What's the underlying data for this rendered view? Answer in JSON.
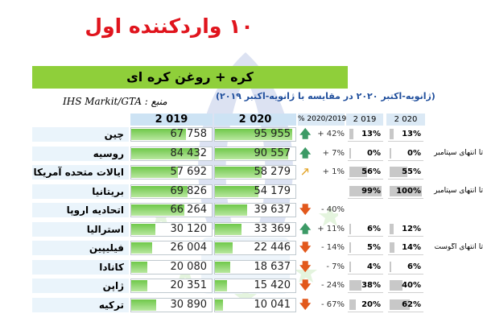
{
  "title": "۱۰ واردکننده اول",
  "banner": "کره + روغن کره ای",
  "subtitle": "(ژانویه-اکتبر ۲۰۲۰ در مقایسه با ژانویه-اکتبر ۲۰۱۹)",
  "source": "IHS Markit/GTA : منبع",
  "colors": {
    "title": "#e0141d",
    "banner": "#8fcf3a",
    "bar": "#6fc84a",
    "up": "#3c9a66",
    "down": "#e2581c",
    "neutral": "#e3a52a"
  },
  "chart_data": {
    "type": "table",
    "columns": {
      "col_2019": "2 019",
      "col_2020": "2 020",
      "change": "% 2020/2019",
      "share_2019": "2 019",
      "share_2020": "2 020"
    },
    "rows": [
      {
        "country": "چین",
        "v2019": "67 758",
        "v2020": "95 955",
        "change": "+ 42%",
        "trend": "up",
        "s2019": "13%",
        "s2020": "13%"
      },
      {
        "country": "روسیه",
        "v2019": "84 432",
        "v2020": "90 557",
        "change": "+ 7%",
        "trend": "up",
        "s2019": "0%",
        "s2020": "0%"
      },
      {
        "country": "ایالات متحده آمریکا",
        "v2019": "57 692",
        "v2020": "58 279",
        "change": "+ 1%",
        "trend": "flat",
        "s2019": "56%",
        "s2020": "55%"
      },
      {
        "country": "بریتانیا",
        "v2019": "69 826",
        "v2020": "54 179",
        "change": "",
        "trend": "none",
        "s2019": "99%",
        "s2020": "100%"
      },
      {
        "country": "اتحادیه اروپا",
        "v2019": "66 264",
        "v2020": "39 637",
        "change": "- 40%",
        "trend": "down",
        "s2019": "",
        "s2020": ""
      },
      {
        "country": "استرالیا",
        "v2019": "30 120",
        "v2020": "33 369",
        "change": "+ 11%",
        "trend": "up",
        "s2019": "6%",
        "s2020": "12%"
      },
      {
        "country": "فیلیپین",
        "v2019": "26 004",
        "v2020": "22 446",
        "change": "- 14%",
        "trend": "down",
        "s2019": "5%",
        "s2020": "14%"
      },
      {
        "country": "کانادا",
        "v2019": "20 080",
        "v2020": "18 637",
        "change": "- 7%",
        "trend": "down",
        "s2019": "4%",
        "s2020": "6%"
      },
      {
        "country": "ژاپن",
        "v2019": "20 351",
        "v2020": "15 420",
        "change": "- 24%",
        "trend": "down",
        "s2019": "38%",
        "s2020": "40%"
      },
      {
        "country": "ترکیه",
        "v2019": "30 890",
        "v2020": "10 041",
        "change": "- 67%",
        "trend": "down",
        "s2019": "20%",
        "s2020": "62%"
      }
    ],
    "notes": [
      {
        "row": 1,
        "text": "تا انتهای سپتامبر"
      },
      {
        "row": 3,
        "text": "تا انتهای سپتامبر"
      },
      {
        "row": 6,
        "text": "تا انتهای آگوست"
      }
    ]
  }
}
